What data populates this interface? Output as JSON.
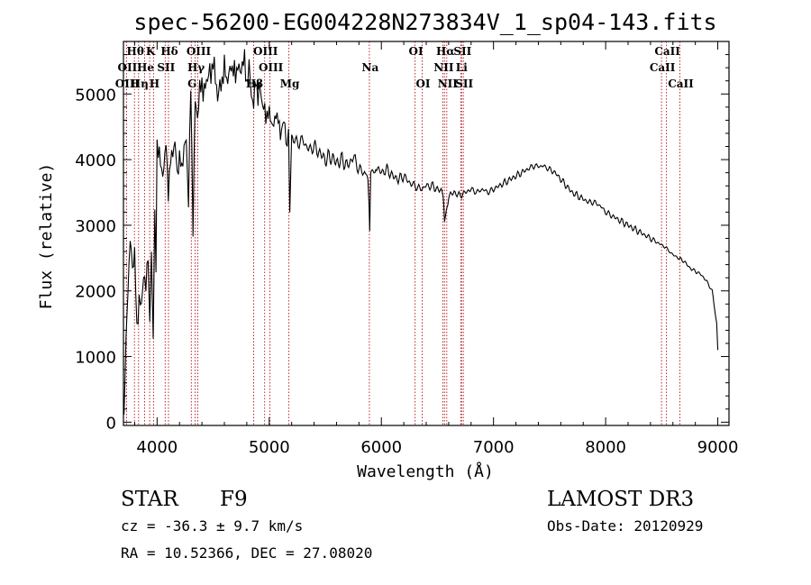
{
  "chart_data": {
    "type": "line",
    "title": "spec-56200-EG004228N273834V_1_sp04-143.fits",
    "xlabel": "Wavelength (Å)",
    "ylabel": "Flux (relative)",
    "xlim": [
      3700,
      9100
    ],
    "ylim": [
      -50,
      5800
    ],
    "xticks": [
      4000,
      5000,
      6000,
      7000,
      8000,
      9000
    ],
    "yticks": [
      0,
      1000,
      2000,
      3000,
      4000,
      5000
    ],
    "series": [
      {
        "name": "flux",
        "x": [
          3705,
          3740,
          3760,
          3780,
          3800,
          3820,
          3840,
          3860,
          3880,
          3900,
          3920,
          3935,
          3950,
          3965,
          3980,
          3990,
          4000,
          4020,
          4040,
          4060,
          4080,
          4100,
          4120,
          4140,
          4160,
          4180,
          4200,
          4220,
          4240,
          4260,
          4280,
          4300,
          4320,
          4340,
          4360,
          4380,
          4400,
          4420,
          4440,
          4460,
          4480,
          4500,
          4520,
          4540,
          4560,
          4580,
          4600,
          4620,
          4640,
          4660,
          4680,
          4700,
          4720,
          4740,
          4760,
          4780,
          4800,
          4820,
          4840,
          4861,
          4880,
          4900,
          4920,
          4940,
          4960,
          4980,
          5000,
          5020,
          5040,
          5060,
          5080,
          5100,
          5120,
          5140,
          5160,
          5172,
          5183,
          5200,
          5250,
          5300,
          5350,
          5400,
          5450,
          5500,
          5550,
          5600,
          5650,
          5700,
          5750,
          5800,
          5850,
          5880,
          5890,
          5896,
          5905,
          5950,
          6000,
          6050,
          6100,
          6150,
          6200,
          6250,
          6300,
          6350,
          6400,
          6450,
          6500,
          6550,
          6563,
          6600,
          6650,
          6700,
          6750,
          6800,
          6850,
          6900,
          6950,
          7000,
          7050,
          7100,
          7150,
          7200,
          7250,
          7300,
          7350,
          7400,
          7450,
          7500,
          7550,
          7600,
          7650,
          7700,
          7750,
          7800,
          7850,
          7900,
          7950,
          8000,
          8050,
          8100,
          8150,
          8200,
          8250,
          8300,
          8350,
          8400,
          8450,
          8500,
          8542,
          8600,
          8650,
          8700,
          8750,
          8800,
          8850,
          8900,
          8950,
          8990,
          9000
        ],
        "values": [
          200,
          2100,
          2800,
          2300,
          2600,
          1400,
          1900,
          1700,
          2300,
          2050,
          2600,
          1550,
          2500,
          1250,
          3200,
          2300,
          4200,
          4100,
          3800,
          3900,
          4200,
          3500,
          4000,
          4150,
          4200,
          3800,
          4050,
          3850,
          4150,
          4300,
          3400,
          5100,
          3000,
          4900,
          4700,
          5000,
          5150,
          5050,
          5200,
          5300,
          5250,
          5600,
          5200,
          4950,
          5100,
          5250,
          5400,
          5200,
          5300,
          5450,
          5350,
          5250,
          5500,
          5300,
          5450,
          5500,
          5200,
          5400,
          5000,
          4800,
          5300,
          4900,
          5100,
          4850,
          4750,
          4650,
          4700,
          4600,
          4500,
          4700,
          4600,
          4400,
          4550,
          4500,
          4150,
          4400,
          3200,
          4350,
          4250,
          4300,
          4150,
          4200,
          4100,
          4000,
          4050,
          3950,
          4000,
          3900,
          4050,
          3850,
          3800,
          3700,
          3300,
          2900,
          3750,
          3900,
          3800,
          3850,
          3750,
          3700,
          3750,
          3650,
          3600,
          3550,
          3600,
          3600,
          3550,
          3500,
          3100,
          3450,
          3500,
          3450,
          3500,
          3550,
          3500,
          3550,
          3500,
          3550,
          3600,
          3650,
          3700,
          3750,
          3800,
          3850,
          3900,
          3900,
          3900,
          3850,
          3800,
          3700,
          3600,
          3500,
          3450,
          3400,
          3350,
          3350,
          3300,
          3200,
          3150,
          3100,
          3050,
          3000,
          2950,
          2900,
          2850,
          2800,
          2750,
          2700,
          2650,
          2550,
          2500,
          2450,
          2350,
          2300,
          2250,
          2150,
          2000,
          1500,
          1100
        ]
      }
    ],
    "line_marks": [
      {
        "label": "Hθ",
        "x": 3798,
        "row": 0
      },
      {
        "label": "OII",
        "x": 3727,
        "row": 1
      },
      {
        "label": "OIII",
        "x": 3727,
        "row": 2
      },
      {
        "label": "K",
        "x": 3934,
        "row": 0
      },
      {
        "label": "He",
        "x": 3889,
        "row": 1
      },
      {
        "label": "Hη",
        "x": 3835,
        "row": 2
      },
      {
        "label": "SII",
        "x": 4072,
        "row": 1
      },
      {
        "label": "H",
        "x": 3968,
        "row": 2
      },
      {
        "label": "Hδ",
        "x": 4102,
        "row": 0
      },
      {
        "label": "OIII",
        "x": 4363,
        "row": 0
      },
      {
        "label": "Hγ",
        "x": 4340,
        "row": 1
      },
      {
        "label": "G",
        "x": 4305,
        "row": 2
      },
      {
        "label": "OIII",
        "x": 4959,
        "row": 0
      },
      {
        "label": "OIII",
        "x": 5007,
        "row": 1
      },
      {
        "label": "Hβ",
        "x": 4861,
        "row": 2
      },
      {
        "label": "Mg",
        "x": 5175,
        "row": 2
      },
      {
        "label": "Na",
        "x": 5893,
        "row": 1
      },
      {
        "label": "OI",
        "x": 6300,
        "row": 0
      },
      {
        "label": "OI",
        "x": 6364,
        "row": 2
      },
      {
        "label": "Hα",
        "x": 6563,
        "row": 0
      },
      {
        "label": "SII",
        "x": 6716,
        "row": 0
      },
      {
        "label": "NII",
        "x": 6548,
        "row": 1
      },
      {
        "label": "Li",
        "x": 6708,
        "row": 1
      },
      {
        "label": "NII",
        "x": 6583,
        "row": 2
      },
      {
        "label": "SII",
        "x": 6731,
        "row": 2
      },
      {
        "label": "CaII",
        "x": 8542,
        "row": 0
      },
      {
        "label": "CaII",
        "x": 8498,
        "row": 1
      },
      {
        "label": "CaII",
        "x": 8662,
        "row": 2
      }
    ],
    "line_positions": [
      3727,
      3798,
      3835,
      3889,
      3934,
      3968,
      4072,
      4102,
      4305,
      4340,
      4363,
      4861,
      4959,
      5007,
      5175,
      5893,
      6300,
      6364,
      6548,
      6563,
      6583,
      6708,
      6716,
      6731,
      8498,
      8542,
      8662
    ]
  },
  "info": {
    "object_class": "STAR",
    "subclass": "F9",
    "survey": "LAMOST DR3",
    "redshift_text": "cz = -36.3 ± 9.7 km/s",
    "obs_date": "Obs-Date: 20120929",
    "coords_text": "RA =  10.52366, DEC =  27.08020"
  },
  "colors": {
    "line_mark": "#b3121b",
    "spectrum": "#000000"
  }
}
